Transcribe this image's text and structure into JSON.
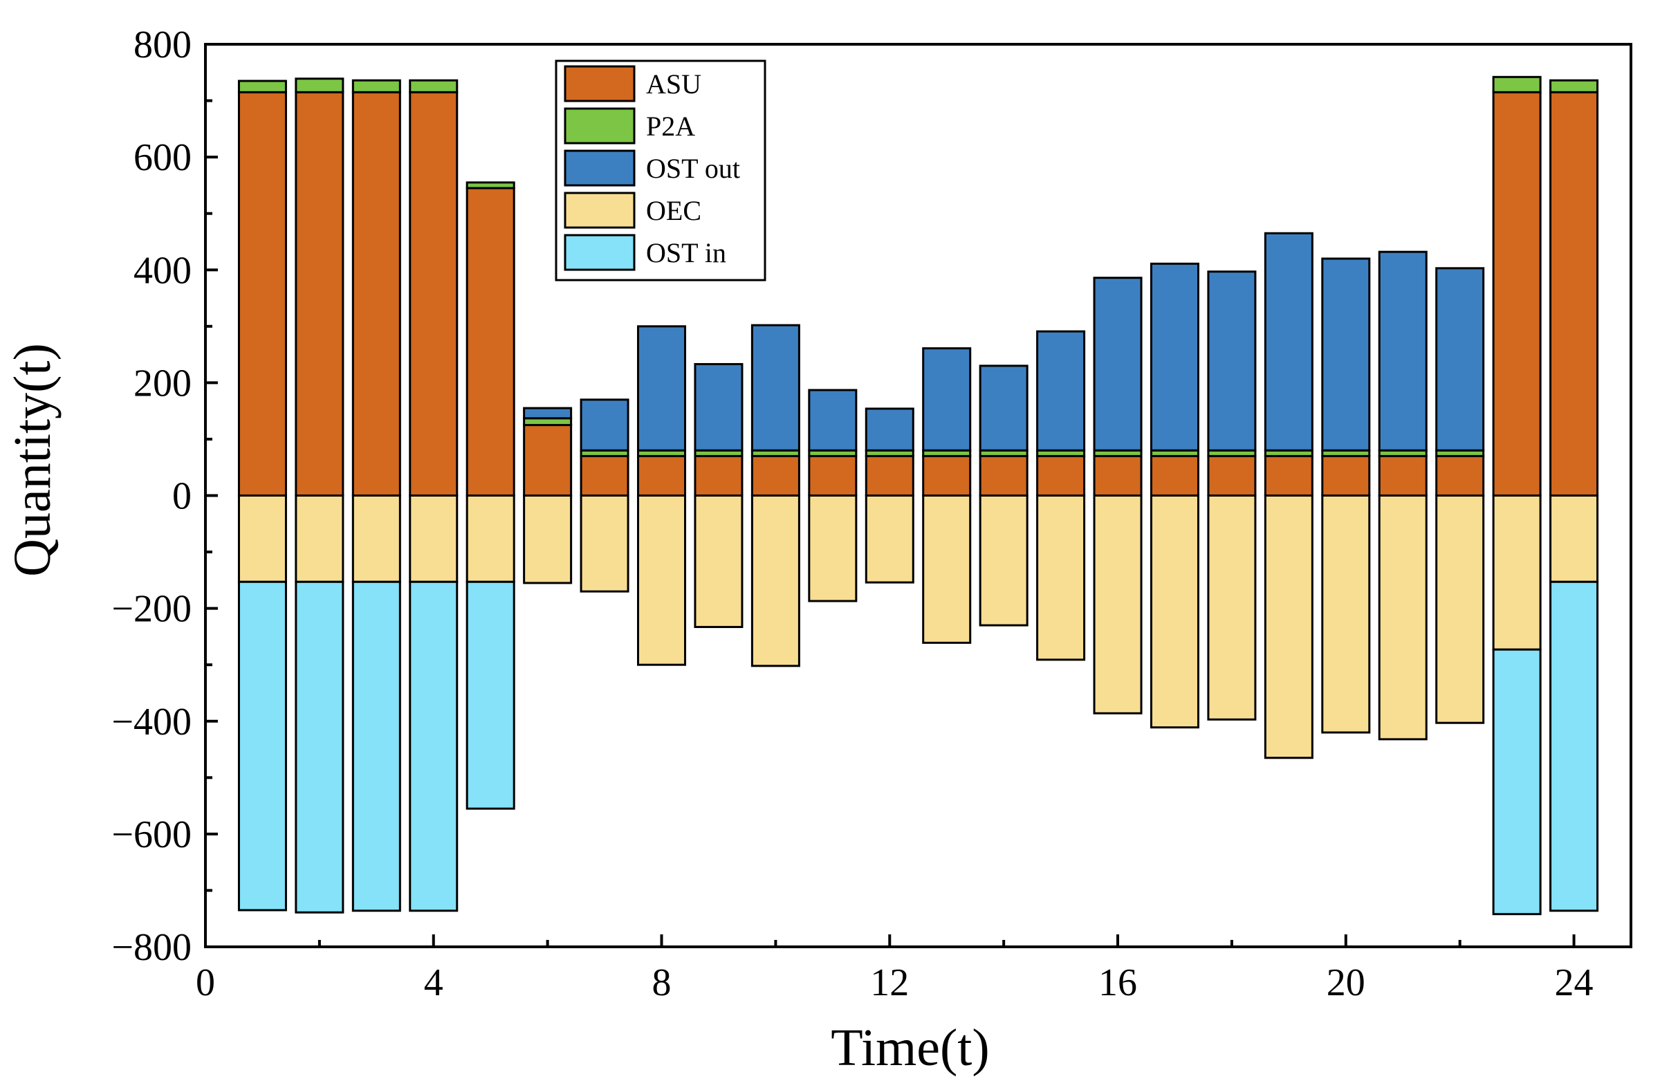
{
  "chart_data": {
    "type": "bar",
    "stacked": true,
    "title": "",
    "xlabel": "Time(t)",
    "ylabel": "Quantity(t)",
    "xlim": [
      0,
      25
    ],
    "ylim": [
      -800,
      800
    ],
    "x_ticks": [
      0,
      4,
      8,
      12,
      16,
      20,
      24
    ],
    "y_ticks": [
      -800,
      -600,
      -400,
      -200,
      0,
      200,
      400,
      600,
      800
    ],
    "y_tick_labels": [
      "−800",
      "−600",
      "−400",
      "−200",
      "0",
      "200",
      "400",
      "600",
      "800"
    ],
    "legend_position": "top-center",
    "x": [
      1,
      2,
      3,
      4,
      5,
      6,
      7,
      8,
      9,
      10,
      11,
      12,
      13,
      14,
      15,
      16,
      17,
      18,
      19,
      20,
      21,
      22,
      23,
      24
    ],
    "series": [
      {
        "name": "ASU",
        "color": "#D2691E",
        "direction": "positive",
        "values": [
          715,
          715,
          715,
          715,
          545,
          125,
          70,
          70,
          70,
          70,
          70,
          70,
          70,
          70,
          70,
          70,
          70,
          70,
          70,
          70,
          70,
          70,
          715,
          715
        ]
      },
      {
        "name": "P2A",
        "color": "#7DC544",
        "direction": "positive",
        "values": [
          20,
          24,
          21,
          21,
          10,
          12,
          10,
          10,
          10,
          10,
          10,
          10,
          10,
          10,
          10,
          10,
          10,
          10,
          10,
          10,
          10,
          10,
          27,
          21
        ]
      },
      {
        "name": "OST out",
        "color": "#3D80C2",
        "direction": "positive",
        "values": [
          0,
          0,
          0,
          0,
          0,
          18,
          90,
          220,
          153,
          222,
          107,
          74,
          181,
          150,
          211,
          306,
          331,
          317,
          385,
          340,
          352,
          323,
          0,
          0
        ]
      },
      {
        "name": "OEC",
        "color": "#F8DE93",
        "direction": "negative",
        "values": [
          -153,
          -153,
          -153,
          -153,
          -153,
          -155,
          -170,
          -300,
          -233,
          -302,
          -187,
          -154,
          -261,
          -230,
          -291,
          -386,
          -411,
          -397,
          -465,
          -420,
          -432,
          -403,
          -273,
          -153
        ]
      },
      {
        "name": "OST in",
        "color": "#85E2F8",
        "direction": "negative",
        "values": [
          -582,
          -586,
          -583,
          -583,
          -402,
          0,
          0,
          0,
          0,
          0,
          0,
          0,
          0,
          0,
          0,
          0,
          0,
          0,
          0,
          0,
          0,
          0,
          -469,
          -583
        ]
      }
    ]
  }
}
